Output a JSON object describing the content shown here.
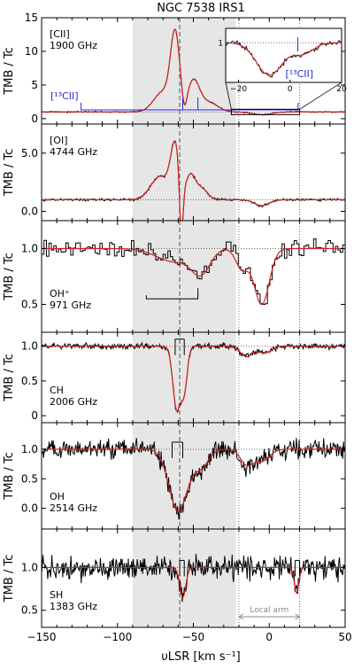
{
  "title": "NGC 7538 IRS1",
  "x_axis": {
    "label": "υLSR [km s⁻¹]",
    "range": [
      -150,
      50
    ],
    "ticks": [
      -150,
      -100,
      -50,
      0,
      50
    ]
  },
  "y_axis_label": "TMB / Tc",
  "shaded_range": [
    -90,
    -22
  ],
  "dashed_line_v": -59,
  "local_arm": {
    "label": "Local arm",
    "range": [
      -20,
      20
    ]
  },
  "chart_data": [
    {
      "type": "line",
      "species": "[CII]",
      "frequency": "1900 GHz",
      "ylim": [
        -0.8,
        15
      ],
      "yticks": [
        0,
        5,
        10,
        15
      ],
      "tick_labels": [
        "0",
        "5",
        "10",
        "15"
      ],
      "baseline": 1,
      "noise": 0.05,
      "obs_style": "line",
      "continuum": 1,
      "features": [
        {
          "v": -62,
          "a": 11.0,
          "w": 3
        },
        {
          "v": -50,
          "a": 4.5,
          "w": 4
        },
        {
          "v": -70,
          "a": 3.0,
          "w": 6
        },
        {
          "v": -40,
          "a": 1.4,
          "w": 6
        },
        {
          "v": -56,
          "a": -2.0,
          "w": 1.5
        },
        {
          "v": -5,
          "a": -0.4,
          "w": 6
        }
      ],
      "c13_label": "[¹³CII]",
      "c13_ticks": [
        -124,
        -57,
        -47,
        19
      ],
      "inset": {
        "xlim": [
          -25,
          20
        ],
        "ylim": [
          0.45,
          1.2
        ],
        "xticks": [
          -20,
          0,
          20
        ],
        "yticks": [
          1
        ],
        "continuum": 1,
        "features": [
          {
            "v": -8,
            "a": -0.45,
            "w": 5
          },
          {
            "v": 5,
            "a": -0.15,
            "w": 4
          }
        ],
        "label": "[¹³CII]",
        "c13_tick": 3
      }
    },
    {
      "type": "line",
      "species": "[OI]",
      "frequency": "4744 GHz",
      "ylim": [
        -0.8,
        7.5
      ],
      "yticks": [
        0,
        5
      ],
      "tick_labels": [
        "0.0",
        "5.0"
      ],
      "baseline": 1,
      "noise": 0.05,
      "obs_style": "line",
      "continuum": 1,
      "features": [
        {
          "v": -62,
          "a": 4.5,
          "w": 3
        },
        {
          "v": -72,
          "a": 2.0,
          "w": 6
        },
        {
          "v": -52,
          "a": 2.0,
          "w": 3
        },
        {
          "v": -45,
          "a": 1.0,
          "w": 4
        },
        {
          "v": -58,
          "a": -5.0,
          "w": 1.2
        },
        {
          "v": -5,
          "a": -0.5,
          "w": 5
        }
      ]
    },
    {
      "type": "line",
      "species": "OH⁺",
      "frequency": "971 GHz",
      "ylim": [
        0.25,
        1.25
      ],
      "yticks": [
        0.5,
        1.0
      ],
      "tick_labels": [
        "0.5",
        "1.0"
      ],
      "baseline": 1,
      "noise": 0.04,
      "obs_style": "step",
      "continuum": 1,
      "features": [
        {
          "v": -62,
          "a": -0.12,
          "w": 12
        },
        {
          "v": -45,
          "a": -0.2,
          "w": 6
        },
        {
          "v": -18,
          "a": -0.18,
          "w": 4
        },
        {
          "v": -5,
          "a": -0.5,
          "w": 5
        }
      ],
      "hfs_bracket": {
        "range": [
          -81,
          -47
        ],
        "y": 0.55
      }
    },
    {
      "type": "line",
      "species": "CH",
      "frequency": "2006 GHz",
      "ylim": [
        -0.1,
        1.2
      ],
      "yticks": [
        0,
        0.5,
        1.0
      ],
      "tick_labels": [
        "0",
        "0.5",
        "1.0"
      ],
      "baseline": 1,
      "noise": 0.02,
      "obs_style": "line",
      "continuum": 1,
      "features": [
        {
          "v": -61,
          "a": -0.9,
          "w": 2.5
        },
        {
          "v": -56,
          "a": -0.6,
          "w": 2
        },
        {
          "v": -15,
          "a": -0.15,
          "w": 4
        },
        {
          "v": -3,
          "a": -0.1,
          "w": 4
        }
      ],
      "hfs_ticks": [
        -62,
        -56
      ]
    },
    {
      "type": "line",
      "species": "OH",
      "frequency": "2514 GHz",
      "ylim": [
        -0.35,
        1.45
      ],
      "yticks": [
        0,
        0.5,
        1.0
      ],
      "tick_labels": [
        "0.0",
        "0.5",
        "1.0"
      ],
      "baseline": 1,
      "noise": 0.08,
      "obs_style": "line",
      "continuum": 1,
      "features": [
        {
          "v": -60,
          "a": -1.05,
          "w": 6
        },
        {
          "v": -45,
          "a": -0.3,
          "w": 5
        },
        {
          "v": -15,
          "a": -0.25,
          "w": 4
        },
        {
          "v": -5,
          "a": -0.2,
          "w": 5
        }
      ],
      "hfs_ticks": [
        -64,
        -57
      ]
    },
    {
      "type": "line",
      "species": "SH",
      "frequency": "1383 GHz",
      "ylim": [
        0.3,
        1.45
      ],
      "yticks": [
        0.5,
        1.0
      ],
      "tick_labels": [
        "0.5",
        "1.0"
      ],
      "baseline": 1,
      "noise": 0.07,
      "obs_style": "line",
      "continuum": 1,
      "features": [
        {
          "v": -57,
          "a": -0.35,
          "w": 2
        },
        {
          "v": 18,
          "a": -0.3,
          "w": 1.5
        }
      ],
      "hfs_ticks": [
        -59,
        -56,
        17,
        20
      ]
    }
  ]
}
